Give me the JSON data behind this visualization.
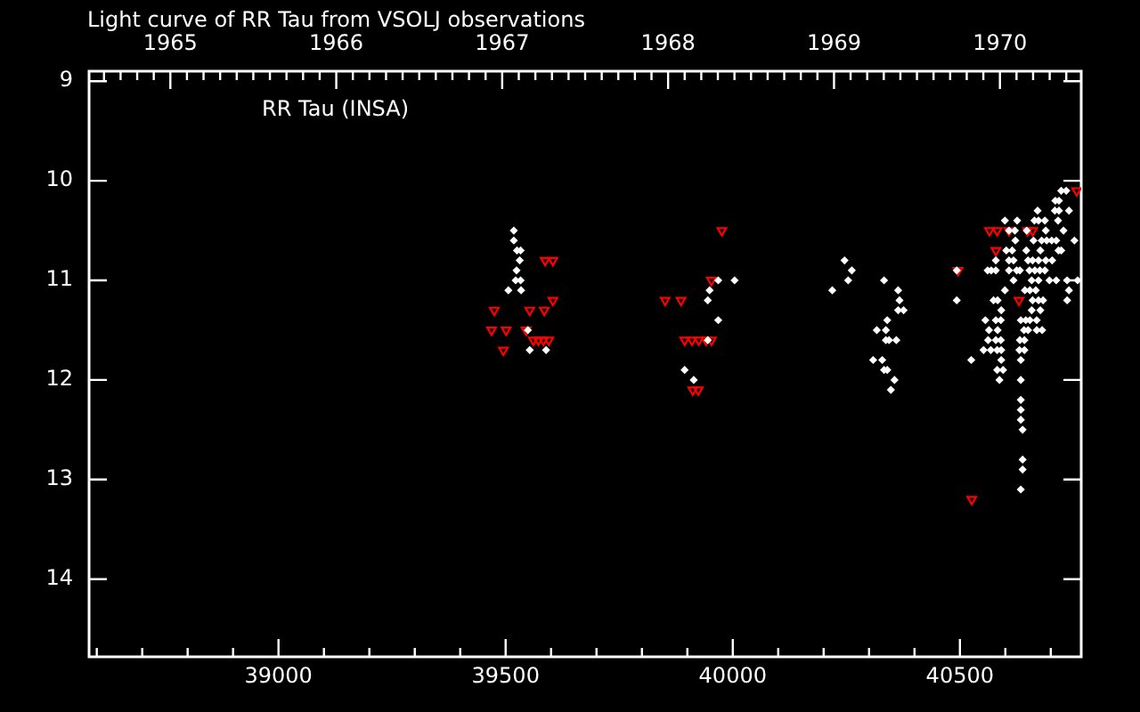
{
  "chart_data": {
    "type": "scatter",
    "title": "Light curve of RR Tau from VSOLJ observations",
    "annotations": [
      "RR Tau (INSA)"
    ],
    "xlim": [
      38583,
      40767
    ],
    "xticks": [
      {
        "value": 38600,
        "label": null
      },
      {
        "value": 38700,
        "label": null
      },
      {
        "value": 38800,
        "label": null
      },
      {
        "value": 38900,
        "label": null
      },
      39000,
      {
        "value": 39100,
        "label": null
      },
      {
        "value": 39200,
        "label": null
      },
      {
        "value": 39300,
        "label": null
      },
      {
        "value": 39400,
        "label": null
      },
      39500,
      {
        "value": 39600,
        "label": null
      },
      {
        "value": 39700,
        "label": null
      },
      {
        "value": 39800,
        "label": null
      },
      {
        "value": 39900,
        "label": null
      },
      40000,
      {
        "value": 40100,
        "label": null
      },
      {
        "value": 40200,
        "label": null
      },
      {
        "value": 40300,
        "label": null
      },
      {
        "value": 40400,
        "label": null
      },
      40500,
      {
        "value": 40600,
        "label": null
      },
      {
        "value": 40700,
        "label": null
      }
    ],
    "x2lim": [
      1964.51,
      1970.49
    ],
    "x2ticks": [
      {
        "value": 1964.6,
        "label": null
      },
      {
        "value": 1964.7,
        "label": null
      },
      {
        "value": 1964.8,
        "label": null
      },
      {
        "value": 1964.9,
        "label": null
      },
      1965,
      {
        "value": 1965.1,
        "label": null
      },
      {
        "value": 1965.2,
        "label": null
      },
      {
        "value": 1965.3,
        "label": null
      },
      {
        "value": 1965.4,
        "label": null
      },
      {
        "value": 1965.5,
        "label": null
      },
      {
        "value": 1965.6,
        "label": null
      },
      {
        "value": 1965.7,
        "label": null
      },
      {
        "value": 1965.8,
        "label": null
      },
      {
        "value": 1965.9,
        "label": null
      },
      1966,
      {
        "value": 1966.1,
        "label": null
      },
      {
        "value": 1966.2,
        "label": null
      },
      {
        "value": 1966.3,
        "label": null
      },
      {
        "value": 1966.4,
        "label": null
      },
      {
        "value": 1966.5,
        "label": null
      },
      {
        "value": 1966.6,
        "label": null
      },
      {
        "value": 1966.7,
        "label": null
      },
      {
        "value": 1966.8,
        "label": null
      },
      {
        "value": 1966.9,
        "label": null
      },
      1967,
      {
        "value": 1967.1,
        "label": null
      },
      {
        "value": 1967.2,
        "label": null
      },
      {
        "value": 1967.3,
        "label": null
      },
      {
        "value": 1967.4,
        "label": null
      },
      {
        "value": 1967.5,
        "label": null
      },
      {
        "value": 1967.6,
        "label": null
      },
      {
        "value": 1967.7,
        "label": null
      },
      {
        "value": 1967.8,
        "label": null
      },
      {
        "value": 1967.9,
        "label": null
      },
      1968,
      {
        "value": 1968.1,
        "label": null
      },
      {
        "value": 1968.2,
        "label": null
      },
      {
        "value": 1968.3,
        "label": null
      },
      {
        "value": 1968.4,
        "label": null
      },
      {
        "value": 1968.5,
        "label": null
      },
      {
        "value": 1968.6,
        "label": null
      },
      {
        "value": 1968.7,
        "label": null
      },
      {
        "value": 1968.8,
        "label": null
      },
      {
        "value": 1968.9,
        "label": null
      },
      1969,
      {
        "value": 1969.1,
        "label": null
      },
      {
        "value": 1969.2,
        "label": null
      },
      {
        "value": 1969.3,
        "label": null
      },
      {
        "value": 1969.4,
        "label": null
      },
      {
        "value": 1969.5,
        "label": null
      },
      {
        "value": 1969.6,
        "label": null
      },
      {
        "value": 1969.7,
        "label": null
      },
      {
        "value": 1969.8,
        "label": null
      },
      {
        "value": 1969.9,
        "label": null
      },
      1970,
      {
        "value": 1970.1,
        "label": null
      },
      {
        "value": 1970.2,
        "label": null
      },
      {
        "value": 1970.3,
        "label": null
      },
      {
        "value": 1970.4,
        "label": null
      }
    ],
    "ylim": [
      14.78,
      8.9
    ],
    "yticks": [
      9,
      10,
      11,
      12,
      13,
      14
    ],
    "series": [
      {
        "color": "#ffffff",
        "marker": "diamond",
        "x": [
          39518,
          39518,
          39525,
          39533,
          39531,
          39524,
          39522,
          39533,
          39506,
          39534,
          39549,
          39553,
          39589,
          39894,
          39914,
          39968,
          40004,
          39949,
          39945,
          39968,
          39945,
          40246,
          40262,
          40254,
          40219,
          40333,
          40364,
          40367,
          40364,
          40376,
          40340,
          40317,
          40337,
          40337,
          40344,
          40360,
          40309,
          40329,
          40333,
          40340,
          40356,
          40348,
          40493,
          40493,
          40723,
          40734,
          40710,
          40718,
          40671,
          40709,
          40718,
          40740,
          40599,
          40626,
          40664,
          40673,
          40687,
          40716,
          40608,
          40621,
          40647,
          40689,
          40728,
          40622,
          40662,
          40680,
          40691,
          40702,
          40712,
          40752,
          40602,
          40615,
          40646,
          40677,
          40717,
          40723,
          40579,
          40608,
          40618,
          40650,
          40660,
          40673,
          40689,
          40703,
          40561,
          40569,
          40579,
          40608,
          40625,
          40632,
          40653,
          40665,
          40676,
          40687,
          40618,
          40658,
          40673,
          40697,
          40712,
          40736,
          40759,
          40599,
          40643,
          40654,
          40667,
          40740,
          40574,
          40583,
          40660,
          40673,
          40683,
          40736,
          40591,
          40658,
          40677,
          40556,
          40579,
          40590,
          40634,
          40645,
          40654,
          40669,
          40564,
          40583,
          40641,
          40650,
          40669,
          40681,
          40562,
          40579,
          40590,
          40632,
          40642,
          40552,
          40568,
          40582,
          40591,
          40631,
          40642,
          40525,
          40591,
          40634,
          40582,
          40595,
          40587,
          40634,
          40634,
          40634,
          40634,
          40638,
          40638,
          40638,
          40634
        ],
        "values": [
          10.5,
          10.6,
          10.7,
          10.7,
          10.8,
          10.9,
          11.0,
          11.0,
          11.1,
          11.1,
          11.5,
          11.7,
          11.7,
          11.9,
          12.0,
          11.0,
          11.0,
          11.1,
          11.2,
          11.4,
          11.6,
          10.8,
          10.9,
          11.0,
          11.1,
          11.0,
          11.1,
          11.2,
          11.3,
          11.3,
          11.4,
          11.5,
          11.5,
          11.6,
          11.6,
          11.6,
          11.8,
          11.8,
          11.9,
          11.9,
          12.0,
          12.1,
          10.9,
          11.2,
          10.1,
          10.1,
          10.2,
          10.2,
          10.3,
          10.3,
          10.3,
          10.3,
          10.4,
          10.4,
          10.4,
          10.4,
          10.4,
          10.4,
          10.5,
          10.5,
          10.5,
          10.5,
          10.5,
          10.6,
          10.6,
          10.6,
          10.6,
          10.6,
          10.6,
          10.6,
          10.7,
          10.7,
          10.7,
          10.7,
          10.7,
          10.7,
          10.8,
          10.8,
          10.8,
          10.8,
          10.8,
          10.8,
          10.8,
          10.8,
          10.9,
          10.9,
          10.9,
          10.9,
          10.9,
          10.9,
          10.9,
          10.9,
          10.9,
          10.9,
          11.0,
          11.0,
          11.0,
          11.0,
          11.0,
          11.0,
          11.0,
          11.1,
          11.1,
          11.1,
          11.1,
          11.1,
          11.2,
          11.2,
          11.2,
          11.2,
          11.2,
          11.2,
          11.3,
          11.3,
          11.3,
          11.4,
          11.4,
          11.4,
          11.4,
          11.4,
          11.4,
          11.4,
          11.5,
          11.5,
          11.5,
          11.5,
          11.5,
          11.5,
          11.6,
          11.6,
          11.6,
          11.6,
          11.6,
          11.7,
          11.7,
          11.7,
          11.7,
          11.7,
          11.7,
          11.8,
          11.8,
          11.8,
          11.9,
          11.9,
          12.0,
          12.0,
          12.2,
          12.3,
          12.4,
          12.5,
          12.8,
          12.9,
          13.1
        ]
      },
      {
        "color": "#ff0000",
        "marker": "triangle",
        "x": [
          39587,
          39604,
          39604,
          39475,
          39553,
          39585,
          39469,
          39501,
          39545,
          39561,
          39572,
          39583,
          39595,
          39495,
          39851,
          39886,
          39894,
          39910,
          39925,
          39941,
          39953,
          39976,
          39953,
          39912,
          39924,
          40496,
          40565,
          40582,
          40608,
          40649,
          40660,
          40579,
          40630,
          40757,
          40526
        ],
        "values": [
          10.8,
          10.8,
          11.2,
          11.3,
          11.3,
          11.3,
          11.5,
          11.5,
          11.5,
          11.6,
          11.6,
          11.6,
          11.6,
          11.7,
          11.2,
          11.2,
          11.6,
          11.6,
          11.6,
          11.6,
          11.6,
          10.5,
          11.0,
          12.1,
          12.1,
          10.9,
          10.5,
          10.5,
          10.5,
          10.5,
          10.5,
          10.7,
          11.2,
          10.1,
          13.2
        ]
      }
    ]
  }
}
